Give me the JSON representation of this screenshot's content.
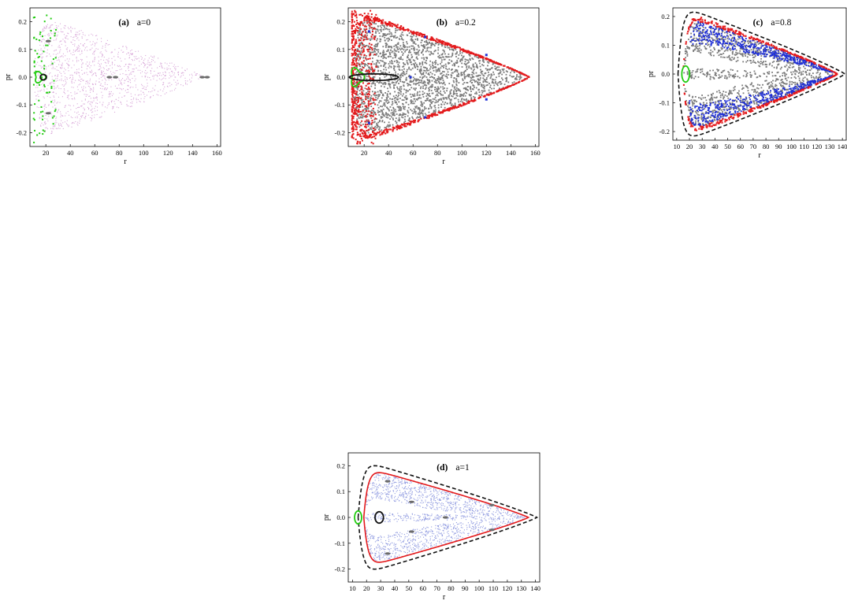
{
  "colors": {
    "chaotic": "#7a7a7a",
    "sparse": "#d9a8d9",
    "red": "#e31a1c",
    "blue": "#1f2fd6",
    "green": "#22cc11",
    "black": "#111111",
    "grey_island": "#6b6b6b",
    "sparse_blue": "#8f9ae0"
  },
  "chart_data": [
    {
      "id": "a",
      "type": "scatter",
      "tag": "(a)",
      "param": "a=0",
      "xlabel": "r",
      "ylabel": "pr",
      "xlim": [
        7,
        163
      ],
      "ylim": [
        -0.25,
        0.25
      ],
      "xticks": [
        20,
        40,
        60,
        80,
        100,
        120,
        140,
        160
      ],
      "yticks": [
        -0.2,
        -0.1,
        0.0,
        0.1,
        0.2
      ],
      "ytick_labels": [
        "-0.2",
        "-0.1",
        "0.0",
        "0.1",
        "0.2"
      ],
      "shape": {
        "r_left": 10,
        "r_right": 150,
        "r_min": 10,
        "pr_max": 0.24,
        "notch": 0.0
      },
      "sea": {
        "color": "sparse",
        "count": 1300
      },
      "chaotic_edge": {
        "color": "green",
        "count": 70
      },
      "curves": [
        {
          "name": "inner-green",
          "color": "green",
          "cx": 15,
          "cy": 0.0,
          "rx": 4,
          "ry": 0.018,
          "sides": 3
        },
        {
          "name": "inner-black",
          "color": "black",
          "cx": 18,
          "cy": 0.0,
          "rx": 2.5,
          "ry": 0.01,
          "sides": 0
        }
      ],
      "islands": [
        {
          "r": 22,
          "pr": 0.13
        },
        {
          "r": 22,
          "pr": -0.13
        },
        {
          "r": 72,
          "pr": 0.0
        },
        {
          "r": 77,
          "pr": 0.0
        },
        {
          "r": 148,
          "pr": 0.0
        },
        {
          "r": 152,
          "pr": 0.0
        }
      ]
    },
    {
      "id": "b",
      "type": "scatter",
      "tag": "(b)",
      "param": "a=0.2",
      "xlabel": "r",
      "ylabel": "pr",
      "xlim": [
        7,
        163
      ],
      "ylim": [
        -0.25,
        0.25
      ],
      "xticks": [
        20,
        40,
        60,
        80,
        100,
        120,
        140,
        160
      ],
      "yticks": [
        -0.2,
        -0.1,
        0.0,
        0.1,
        0.2
      ],
      "ytick_labels": [
        "-0.2",
        "-0.1",
        "0.0",
        "0.1",
        "0.2"
      ],
      "shape": {
        "r_left": 10,
        "r_right": 155,
        "r_min": 10,
        "pr_max": 0.24,
        "notch": 0.0
      },
      "sea": {
        "color": "chaotic",
        "count": 2100
      },
      "boundary": {
        "color": "red",
        "count": 700
      },
      "chaotic_edge": {
        "color": "red",
        "count": 500
      },
      "curves": [
        {
          "name": "inner-green",
          "color": "green",
          "cx": 14,
          "cy": 0.0,
          "rx": 5,
          "ry": 0.03,
          "sides": 3
        },
        {
          "name": "inner-black",
          "color": "black",
          "cx": 28,
          "cy": 0.0,
          "rx": 20,
          "ry": 0.012,
          "sides": 0
        }
      ],
      "blue_points": [
        {
          "r": 24,
          "pr": 0.165
        },
        {
          "r": 24,
          "pr": -0.165
        },
        {
          "r": 58,
          "pr": 0.0
        },
        {
          "r": 120,
          "pr": 0.08
        },
        {
          "r": 120,
          "pr": -0.08
        },
        {
          "r": 70,
          "pr": 0.145
        },
        {
          "r": 70,
          "pr": -0.145
        }
      ]
    },
    {
      "id": "c",
      "type": "scatter",
      "tag": "(c)",
      "param": "a=0.8",
      "xlabel": "r",
      "ylabel": "pr",
      "xlim": [
        7,
        143
      ],
      "ylim": [
        -0.23,
        0.23
      ],
      "xticks": [
        10,
        20,
        30,
        40,
        50,
        60,
        70,
        80,
        90,
        100,
        110,
        120,
        130,
        140
      ],
      "yticks": [
        -0.2,
        -0.1,
        0.0,
        0.1,
        0.2
      ],
      "ytick_labels": [
        "-0.2",
        "-0.1",
        "0.0",
        "0.1",
        "0.2"
      ],
      "shape": {
        "r_left": 15,
        "r_right": 136,
        "r_min": 17,
        "pr_max": 0.215,
        "notch": 0.55
      },
      "sea": {
        "color": "chaotic",
        "count": 1200
      },
      "boundary": {
        "color": "red",
        "count": 450
      },
      "inner_band": {
        "color": "blue",
        "count": 900
      },
      "curves": [
        {
          "name": "inner-green",
          "color": "green",
          "cx": 17,
          "cy": 0.0,
          "rx": 3,
          "ry": 0.028,
          "sides": 0
        }
      ],
      "dashed": {
        "color": "black"
      }
    },
    {
      "id": "d",
      "type": "scatter",
      "tag": "(d)",
      "param": "a=1",
      "xlabel": "r",
      "ylabel": "pr",
      "xlim": [
        7,
        143
      ],
      "ylim": [
        -0.25,
        0.25
      ],
      "xticks": [
        10,
        20,
        30,
        40,
        50,
        60,
        70,
        80,
        90,
        100,
        110,
        120,
        130,
        140
      ],
      "yticks": [
        -0.2,
        -0.1,
        0.0,
        0.1,
        0.2
      ],
      "ytick_labels": [
        "-0.2",
        "-0.1",
        "0.0",
        "0.1",
        "0.2"
      ],
      "shape": {
        "r_left": 18,
        "r_right": 135,
        "r_min": 18,
        "pr_max": 0.2,
        "notch": 0.55
      },
      "sea": {
        "color": "sparse_blue",
        "count": 1600
      },
      "curves": [
        {
          "name": "inner-green",
          "color": "green",
          "cx": 14,
          "cy": 0.0,
          "rx": 2.5,
          "ry": 0.025,
          "sides": 0
        },
        {
          "name": "inner-black",
          "color": "black",
          "cx": 29,
          "cy": 0.0,
          "rx": 3,
          "ry": 0.022,
          "sides": 0
        }
      ],
      "solid_boundary": {
        "color": "red"
      },
      "dashed": {
        "color": "black"
      },
      "islands": [
        {
          "r": 35,
          "pr": 0.14
        },
        {
          "r": 35,
          "pr": -0.14
        },
        {
          "r": 52,
          "pr": 0.06
        },
        {
          "r": 52,
          "pr": -0.055
        },
        {
          "r": 76,
          "pr": 0.0
        },
        {
          "r": 109,
          "pr": 0.048
        },
        {
          "r": 109,
          "pr": -0.048
        }
      ]
    }
  ]
}
